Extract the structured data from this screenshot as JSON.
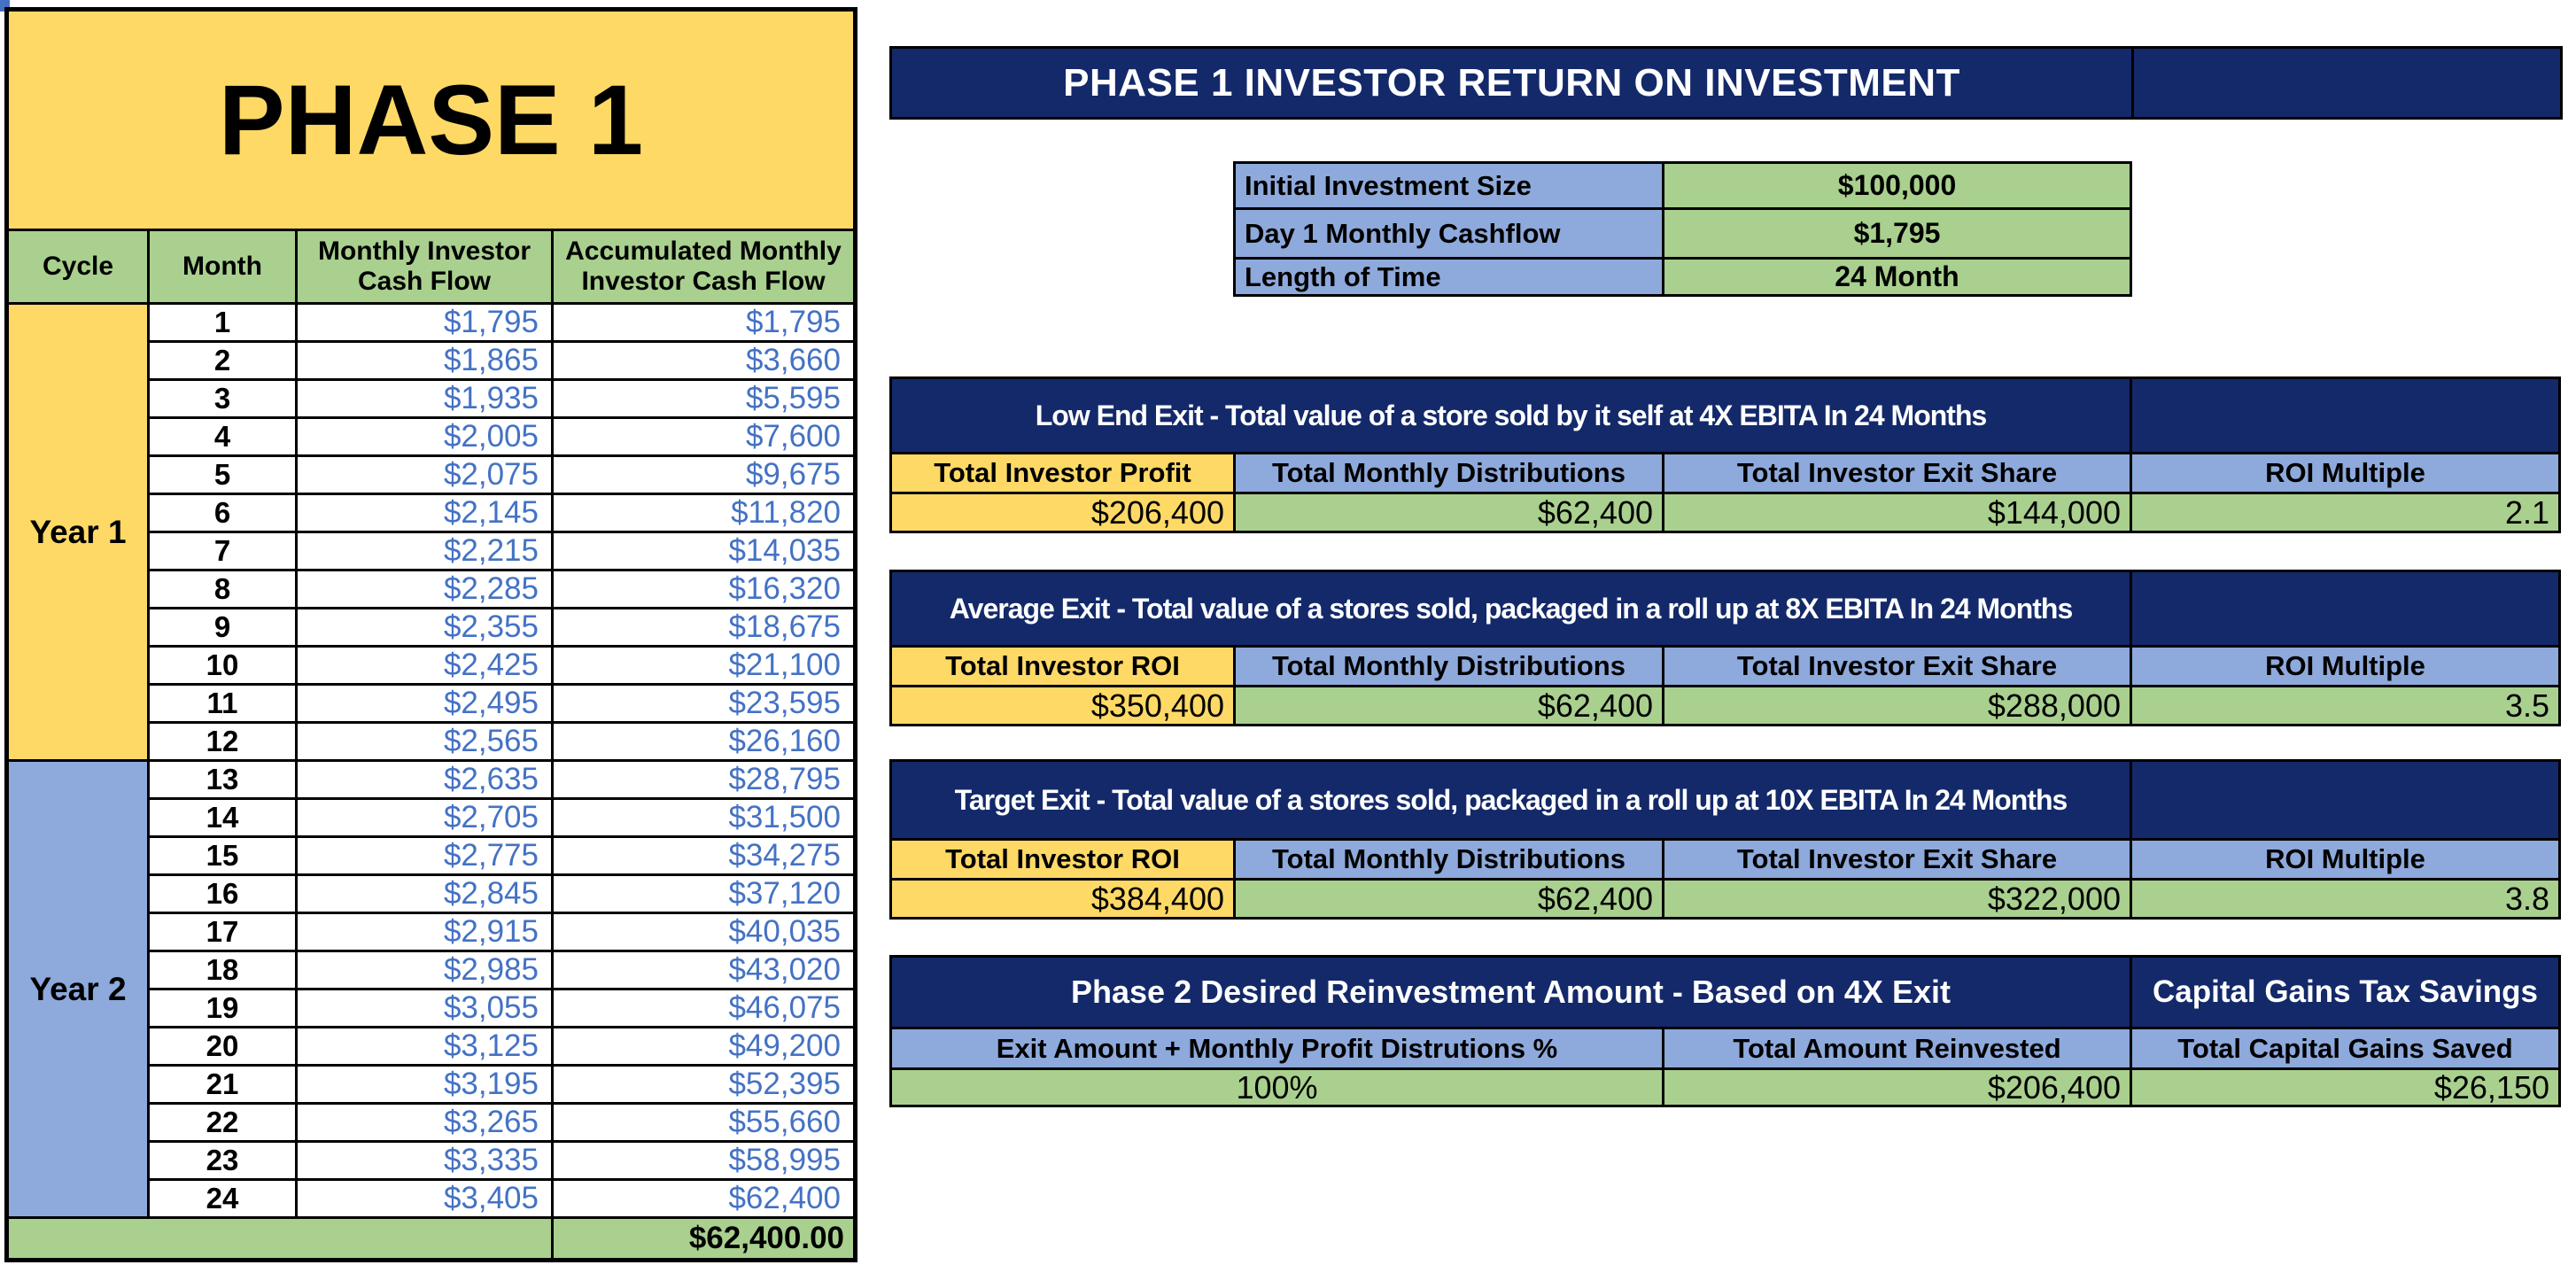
{
  "colors": {
    "yellow": "#FFD966",
    "green": "#A9D08E",
    "blue": "#8EA9DB",
    "navy": "#13296A",
    "value-text": "#4472C4",
    "grid": "#000000",
    "bg": "#FFFFFF"
  },
  "phase_table": {
    "title": "PHASE 1",
    "columns": [
      "Cycle",
      "Month",
      "Monthly Investor Cash Flow",
      "Accumulated Monthly Investor Cash Flow"
    ],
    "year_groups": [
      {
        "label": "Year 1"
      },
      {
        "label": "Year 2"
      }
    ],
    "rows": [
      {
        "month": "1",
        "cash": "$1,795",
        "acc": "$1,795"
      },
      {
        "month": "2",
        "cash": "$1,865",
        "acc": "$3,660"
      },
      {
        "month": "3",
        "cash": "$1,935",
        "acc": "$5,595"
      },
      {
        "month": "4",
        "cash": "$2,005",
        "acc": "$7,600"
      },
      {
        "month": "5",
        "cash": "$2,075",
        "acc": "$9,675"
      },
      {
        "month": "6",
        "cash": "$2,145",
        "acc": "$11,820"
      },
      {
        "month": "7",
        "cash": "$2,215",
        "acc": "$14,035"
      },
      {
        "month": "8",
        "cash": "$2,285",
        "acc": "$16,320"
      },
      {
        "month": "9",
        "cash": "$2,355",
        "acc": "$18,675"
      },
      {
        "month": "10",
        "cash": "$2,425",
        "acc": "$21,100"
      },
      {
        "month": "11",
        "cash": "$2,495",
        "acc": "$23,595"
      },
      {
        "month": "12",
        "cash": "$2,565",
        "acc": "$26,160"
      },
      {
        "month": "13",
        "cash": "$2,635",
        "acc": "$28,795"
      },
      {
        "month": "14",
        "cash": "$2,705",
        "acc": "$31,500"
      },
      {
        "month": "15",
        "cash": "$2,775",
        "acc": "$34,275"
      },
      {
        "month": "16",
        "cash": "$2,845",
        "acc": "$37,120"
      },
      {
        "month": "17",
        "cash": "$2,915",
        "acc": "$40,035"
      },
      {
        "month": "18",
        "cash": "$2,985",
        "acc": "$43,020"
      },
      {
        "month": "19",
        "cash": "$3,055",
        "acc": "$46,075"
      },
      {
        "month": "20",
        "cash": "$3,125",
        "acc": "$49,200"
      },
      {
        "month": "21",
        "cash": "$3,195",
        "acc": "$52,395"
      },
      {
        "month": "22",
        "cash": "$3,265",
        "acc": "$55,660"
      },
      {
        "month": "23",
        "cash": "$3,335",
        "acc": "$58,995"
      },
      {
        "month": "24",
        "cash": "$3,405",
        "acc": "$62,400"
      }
    ],
    "total_value": "$62,400.00"
  },
  "roi": {
    "title": "PHASE 1 INVESTOR RETURN ON INVESTMENT",
    "summary": [
      {
        "label": "Initial Investment Size",
        "value": "$100,000"
      },
      {
        "label": "Day 1 Monthly Cashflow",
        "value": "$1,795"
      },
      {
        "label": "Length of Time",
        "value": "24 Month"
      }
    ]
  },
  "exit_scenarios": [
    {
      "title": "Low End Exit - Total value of a store sold by it self at 4X EBITA In 24 Months",
      "headers": [
        "Total Investor Profit",
        "Total Monthly Distributions",
        "Total Investor Exit Share",
        "ROI Multiple"
      ],
      "values": [
        "$206,400",
        "$62,400",
        "$144,000",
        "2.1"
      ]
    },
    {
      "title": "Average Exit - Total value of a stores sold, packaged in a roll up at 8X EBITA In 24 Months",
      "headers": [
        "Total Investor ROI",
        "Total Monthly Distributions",
        "Total Investor Exit Share",
        "ROI Multiple"
      ],
      "values": [
        "$350,400",
        "$62,400",
        "$288,000",
        "3.5"
      ]
    },
    {
      "title": "Target Exit - Total value of a stores sold, packaged in a roll up at 10X EBITA In 24 Months",
      "headers": [
        "Total Investor ROI",
        "Total Monthly Distributions",
        "Total Investor Exit Share",
        "ROI Multiple"
      ],
      "values": [
        "$384,400",
        "$62,400",
        "$322,000",
        "3.8"
      ]
    }
  ],
  "phase2": {
    "title": "Phase 2 Desired Reinvestment Amount -  Based on 4X Exit",
    "side_title": "Capital Gains Tax Savings",
    "headers": [
      "Exit Amount + Monthly Profit Distrutions %",
      "Total Amount Reinvested",
      "Total Capital Gains Saved"
    ],
    "values": [
      "100%",
      "$206,400",
      "$26,150"
    ]
  }
}
